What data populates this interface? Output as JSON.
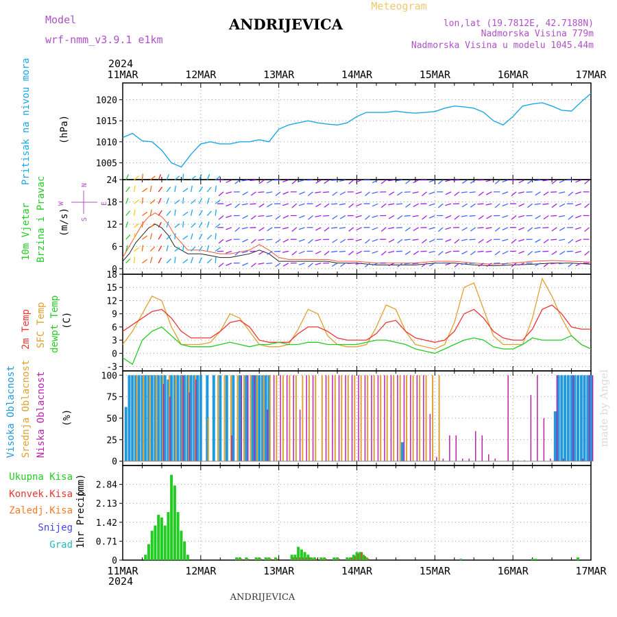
{
  "header": {
    "model_label": "Model",
    "model_name": "wrf-nmm_v3.9.1 e1km",
    "title": "ANDRIJEVICA",
    "meteogram_label": "Meteogram",
    "lonlat": "lon,lat (19.7812E, 42.7188N)",
    "altitude": "Nadmorska Visina 779m",
    "model_altitude": "Nadmorska Visina u modelu 1045.44m",
    "footer_station": "ANDRIJEVICA",
    "watermark": "made by Angel",
    "year_top": "2024",
    "year_bottom": "2024"
  },
  "colors": {
    "pressure": "#1aa7e6",
    "temp2m": "#ee3333",
    "sfc": "#e0a030",
    "dewpt": "#22cc22",
    "high_cloud": "#2299dd",
    "mid_cloud": "#e0a030",
    "low_cloud": "#bb22aa",
    "total_precip": "#22cc22",
    "conv_precip": "#ee3333",
    "frozen_precip": "#ff7722",
    "snow": "#4444ee",
    "hail": "#22bbbb"
  },
  "chart_data": [
    {
      "type": "line",
      "id": "pressure",
      "x_categories": [
        "11MAR",
        "12MAR",
        "13MAR",
        "14MAR",
        "15MAR",
        "16MAR",
        "17MAR"
      ],
      "ylabel_title": "Pritisak na nivou mora",
      "ylabel_unit": "(hPa)",
      "ylim": [
        1001,
        1024
      ],
      "yticks": [
        1005,
        1010,
        1015,
        1020
      ],
      "hours": [
        0,
        3,
        6,
        9,
        12,
        15,
        18,
        21,
        24,
        27,
        30,
        33,
        36,
        39,
        42,
        45,
        48,
        51,
        54,
        57,
        60,
        63,
        66,
        69,
        72,
        75,
        78,
        81,
        84,
        87,
        90,
        93,
        96,
        99,
        102,
        105,
        108,
        111,
        114,
        117,
        120,
        123,
        126,
        129,
        132,
        135,
        138,
        141,
        144
      ],
      "values": [
        1011,
        1012,
        1010.2,
        1010,
        1008,
        1005,
        1004,
        1007,
        1009.5,
        1010,
        1009.5,
        1009.5,
        1010,
        1010,
        1010.5,
        1010,
        1013,
        1014,
        1014.5,
        1015,
        1014.5,
        1014.2,
        1014,
        1014.5,
        1016,
        1017,
        1017,
        1017,
        1017.3,
        1017,
        1016.8,
        1017,
        1017.2,
        1018,
        1018.5,
        1018.3,
        1018,
        1017,
        1015,
        1014,
        1016,
        1018.5,
        1019,
        1019.3,
        1018.5,
        1017.5,
        1017.3,
        1019.5,
        1021.5
      ]
    },
    {
      "type": "wind",
      "id": "wind",
      "ylabel_title": "10m Vjetar",
      "ylabel_title2": "Brzina i Pravac",
      "ylabel_unit": "(m/s)",
      "compass": [
        "N",
        "E",
        "S",
        "W"
      ],
      "ylim": [
        -1.5,
        24
      ],
      "yticks": [
        0,
        6,
        12,
        18,
        24
      ],
      "hours": [
        0,
        2,
        4,
        6,
        8,
        10,
        12,
        14,
        16,
        18,
        20,
        22,
        24,
        27,
        30,
        33,
        36,
        39,
        42,
        45,
        48,
        51,
        54,
        57,
        60,
        63,
        66,
        69,
        72,
        78,
        84,
        90,
        96,
        102,
        108,
        114,
        120,
        126,
        132,
        138,
        144
      ],
      "speed": [
        2,
        4,
        7,
        9,
        11,
        12,
        11,
        9,
        6,
        5,
        4,
        4,
        4,
        3.5,
        3,
        3,
        3.5,
        4,
        5,
        4,
        2,
        2,
        2,
        2,
        2,
        2,
        1.5,
        1.5,
        1.5,
        1,
        1,
        1,
        1.5,
        1.5,
        1,
        0.8,
        1,
        1.2,
        1.5,
        1.5,
        1.2
      ],
      "gust": [
        3,
        6,
        9,
        12,
        14,
        15,
        14,
        12,
        9,
        7,
        5,
        5,
        5,
        4.5,
        4,
        4,
        4.5,
        5,
        6.5,
        5,
        3,
        2.5,
        2.5,
        2.5,
        2.5,
        2.5,
        2,
        2,
        2,
        1.5,
        1.5,
        1.5,
        2,
        2,
        1.5,
        1.2,
        1.5,
        2,
        2.2,
        2,
        1.8
      ]
    },
    {
      "type": "line",
      "id": "temperature",
      "ylabel_title": "2m Temp",
      "ylabel_title2": "SFC Temp",
      "ylabel_title3": "dewpt Temp",
      "ylabel_unit": "(C)",
      "ylim": [
        -4,
        18
      ],
      "yticks": [
        -3,
        0,
        3,
        6,
        9,
        12,
        15,
        18
      ],
      "hours": [
        0,
        3,
        6,
        9,
        12,
        15,
        18,
        21,
        24,
        27,
        30,
        33,
        36,
        39,
        42,
        45,
        48,
        51,
        54,
        57,
        60,
        63,
        66,
        69,
        72,
        75,
        78,
        81,
        84,
        87,
        90,
        93,
        96,
        99,
        102,
        105,
        108,
        111,
        114,
        117,
        120,
        123,
        126,
        129,
        132,
        135,
        138,
        141,
        144
      ],
      "series": [
        {
          "name": "2m Temp",
          "values": [
            5,
            6.5,
            8,
            9.5,
            10,
            8,
            5,
            3.5,
            3.5,
            3.5,
            5,
            7,
            7.5,
            6,
            3,
            2.5,
            2.5,
            2.5,
            4.5,
            6,
            6,
            5,
            3.5,
            3,
            3,
            3,
            4.5,
            7,
            7.5,
            5,
            3.5,
            3,
            2.5,
            3,
            5,
            9,
            10,
            8,
            5,
            3.5,
            3,
            3,
            5.5,
            10,
            11,
            9,
            6,
            5.5,
            5.5
          ]
        },
        {
          "name": "SFC Temp",
          "values": [
            2,
            5,
            9,
            13,
            12,
            6,
            2,
            2,
            2,
            2.5,
            5,
            9,
            8,
            5,
            2,
            1.5,
            1.5,
            2,
            5.5,
            10,
            9,
            4,
            2,
            1.5,
            1.5,
            2,
            6,
            11,
            10,
            5,
            2,
            1.5,
            1,
            2,
            7,
            15,
            16,
            10,
            4,
            2,
            2,
            2,
            8,
            17,
            13,
            8,
            4,
            2,
            1
          ]
        },
        {
          "name": "dewpt Temp",
          "values": [
            -1,
            -2.5,
            3,
            5,
            6,
            4,
            2,
            1.5,
            1.5,
            1.5,
            2,
            2.5,
            2,
            1.5,
            2,
            2,
            2.5,
            2,
            2,
            2.5,
            2.5,
            2,
            2,
            2,
            2,
            2.5,
            3,
            3,
            2.5,
            2,
            1,
            0.5,
            0,
            1,
            2,
            3,
            3.5,
            3,
            1.5,
            1,
            1,
            2,
            3.5,
            3,
            3,
            3,
            4,
            2,
            1
          ]
        }
      ]
    },
    {
      "type": "bar",
      "id": "cloud",
      "ylabel_title": "Visoka Oblacnost",
      "ylabel_title2": "Srednja Oblacnost",
      "ylabel_title3": "Niska Oblacnost",
      "ylabel_unit": "(%)",
      "ylim": [
        -5,
        105
      ],
      "yticks": [
        0,
        25,
        50,
        75,
        100
      ],
      "series": [
        {
          "name": "Visoka Oblacnost",
          "hours": [
            1,
            2,
            3,
            4,
            5,
            6,
            7,
            8,
            9,
            10,
            11,
            12,
            13,
            14,
            15,
            16,
            17,
            18,
            19,
            20,
            21,
            22,
            23,
            24,
            26,
            28,
            30,
            32,
            34,
            36,
            38,
            40,
            41,
            42,
            43,
            44,
            45,
            86,
            133,
            134,
            135,
            136,
            137,
            138,
            139,
            140,
            141,
            142,
            143,
            144
          ],
          "values": [
            63,
            100,
            100,
            100,
            100,
            100,
            100,
            100,
            100,
            100,
            100,
            100,
            100,
            95,
            100,
            100,
            100,
            100,
            100,
            100,
            100,
            100,
            100,
            100,
            100,
            100,
            100,
            100,
            100,
            100,
            100,
            100,
            100,
            100,
            100,
            100,
            100,
            22,
            58,
            100,
            100,
            100,
            100,
            100,
            100,
            100,
            100,
            100,
            100,
            100
          ]
        },
        {
          "name": "Srednja Oblacnost",
          "hours": [
            4,
            6,
            8,
            10,
            12,
            14,
            16,
            18,
            20,
            22,
            26,
            29,
            31,
            33,
            35,
            37,
            39,
            41,
            43,
            45,
            47,
            49,
            51,
            53,
            55,
            57,
            59,
            61,
            63,
            65,
            67,
            69,
            71,
            73,
            75,
            77,
            79,
            81,
            83,
            85,
            87,
            89,
            91,
            93,
            95,
            97
          ],
          "values": [
            100,
            100,
            100,
            100,
            100,
            100,
            100,
            100,
            100,
            100,
            50,
            100,
            100,
            100,
            100,
            100,
            100,
            100,
            100,
            100,
            100,
            100,
            100,
            100,
            100,
            100,
            100,
            100,
            100,
            100,
            100,
            100,
            100,
            100,
            100,
            100,
            100,
            100,
            100,
            100,
            100,
            100,
            100,
            100,
            100,
            100
          ]
        },
        {
          "name": "Niska Oblacnost",
          "hours": [
            12,
            14,
            18,
            20,
            22,
            33,
            36,
            38,
            40,
            44,
            46,
            48,
            50,
            52,
            54,
            56,
            58,
            62,
            64,
            66,
            68,
            70,
            72,
            74,
            76,
            78,
            80,
            82,
            84,
            86,
            88,
            90,
            92,
            94,
            96,
            98,
            100,
            102,
            104,
            106,
            108,
            110,
            112,
            114,
            118,
            120,
            121,
            123,
            125,
            127,
            129,
            131,
            133,
            135,
            138,
            141,
            143,
            144
          ],
          "values": [
            90,
            75,
            100,
            80,
            95,
            30,
            100,
            100,
            100,
            60,
            100,
            100,
            100,
            100,
            60,
            100,
            100,
            100,
            100,
            100,
            100,
            100,
            100,
            100,
            100,
            100,
            100,
            100,
            100,
            100,
            100,
            100,
            100,
            55,
            5,
            3,
            30,
            30,
            3,
            3,
            35,
            30,
            8,
            3,
            100,
            1,
            1,
            1,
            77,
            100,
            50,
            3,
            100,
            3,
            100,
            3,
            100,
            100
          ]
        }
      ]
    },
    {
      "type": "bar",
      "id": "precip",
      "ylabel_title": "1hr Precip",
      "ylabel_unit": "(mm)",
      "legend": [
        "Ukupna Kisa",
        "Konvek.Kisa",
        "Zaledj.Kisa",
        "Snijeg",
        "Grad"
      ],
      "ylim": [
        0,
        3.55
      ],
      "yticks": [
        0,
        0.71,
        1.42,
        2.13,
        2.84
      ],
      "ytick_labels": [
        "0",
        "0.71",
        "1.42",
        "2.13",
        "2.84"
      ],
      "hours": [
        7,
        8,
        9,
        10,
        11,
        12,
        13,
        14,
        15,
        16,
        17,
        18,
        19,
        20,
        35,
        36,
        38,
        41,
        42,
        44,
        45,
        47,
        52,
        53,
        54,
        55,
        56,
        57,
        58,
        59,
        61,
        62,
        65,
        66,
        69,
        70,
        71,
        72,
        73,
        74,
        75,
        104,
        126,
        127,
        140
      ],
      "total": [
        0.2,
        0.6,
        1.1,
        1.3,
        1.7,
        1.6,
        1.3,
        1.8,
        3.2,
        2.8,
        1.8,
        1.1,
        0.7,
        0.2,
        0.1,
        0.1,
        0.1,
        0.1,
        0.1,
        0.1,
        0.1,
        0.1,
        0.2,
        0.2,
        0.5,
        0.4,
        0.3,
        0.2,
        0.1,
        0.1,
        0.1,
        0.1,
        0.1,
        0.1,
        0.1,
        0.1,
        0.2,
        0.3,
        0.3,
        0.2,
        0.1,
        0.05,
        0.05,
        0.05,
        0.1
      ],
      "convective": [
        0,
        0,
        0,
        0,
        0,
        0,
        0,
        0,
        0,
        0,
        0,
        0,
        0,
        0,
        0.05,
        0.05,
        0.05,
        0.05,
        0.05,
        0.05,
        0.05,
        0.05,
        0.1,
        0.1,
        0.1,
        0.1,
        0.1,
        0.1,
        0.05,
        0.05,
        0.05,
        0.05,
        0.05,
        0.05,
        0.05,
        0.1,
        0.15,
        0.25,
        0.3,
        0.15,
        0.05,
        0,
        0,
        0,
        0
      ]
    }
  ]
}
